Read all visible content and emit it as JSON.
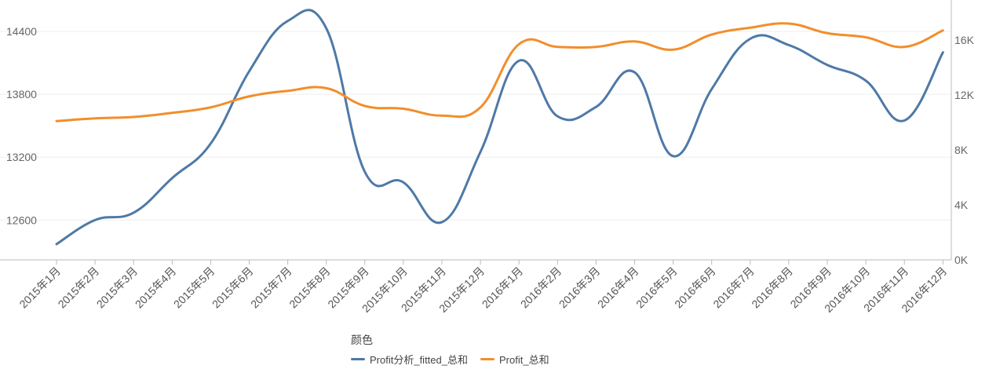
{
  "chart_data": {
    "type": "line",
    "categories": [
      "2015年1月",
      "2015年2月",
      "2015年3月",
      "2015年4月",
      "2015年5月",
      "2015年6月",
      "2015年7月",
      "2015年8月",
      "2015年9月",
      "2015年10月",
      "2015年11月",
      "2015年12月",
      "2016年1月",
      "2016年2月",
      "2016年3月",
      "2016年4月",
      "2016年5月",
      "2016年6月",
      "2016年7月",
      "2016年8月",
      "2016年9月",
      "2016年10月",
      "2016年11月",
      "2016年12月"
    ],
    "series": [
      {
        "name": "Profit分析_fitted_总和",
        "axis": "left",
        "color": "#4e79a7",
        "values": [
          12370,
          12600,
          12670,
          13000,
          13330,
          14020,
          14500,
          14430,
          13060,
          12960,
          12580,
          13250,
          14120,
          13590,
          13680,
          14010,
          13210,
          13850,
          14330,
          14270,
          14080,
          13930,
          13550,
          14200
        ]
      },
      {
        "name": "Profit_总和",
        "axis": "right",
        "color": "#f28e2b",
        "values": [
          10100,
          10300,
          10400,
          10700,
          11100,
          11900,
          12300,
          12500,
          11200,
          11000,
          10500,
          11100,
          15700,
          15500,
          15500,
          15900,
          15300,
          16400,
          16900,
          17200,
          16500,
          16200,
          15500,
          16700
        ]
      }
    ],
    "left_axis": {
      "ticks": [
        12600,
        13200,
        13800,
        14400
      ],
      "range": [
        12220,
        14700
      ]
    },
    "right_axis": {
      "ticks": [
        "0K",
        "4K",
        "8K",
        "12K",
        "16K"
      ],
      "tick_values": [
        0,
        4000,
        8000,
        12000,
        16000
      ],
      "range": [
        0,
        18000
      ]
    },
    "legend_title": "颜色",
    "legend_position": "bottom",
    "grid": true
  }
}
